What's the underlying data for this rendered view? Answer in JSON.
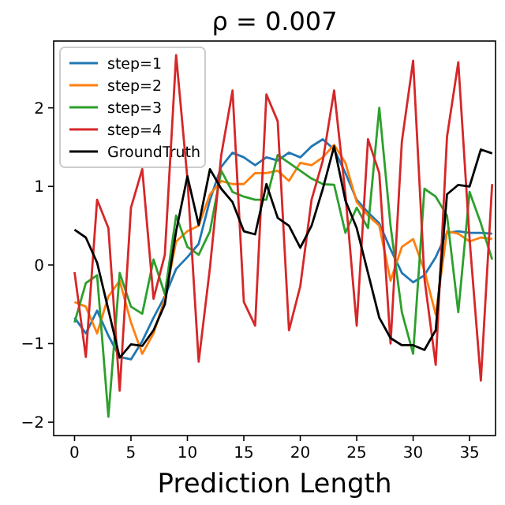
{
  "chart_data": {
    "type": "line",
    "title": "ρ = 0.007",
    "xlabel": "Prediction Length",
    "x": [
      0,
      1,
      2,
      3,
      4,
      5,
      6,
      7,
      8,
      9,
      10,
      11,
      12,
      13,
      14,
      15,
      16,
      17,
      18,
      19,
      20,
      21,
      22,
      23,
      24,
      25,
      26,
      27,
      28,
      29,
      30,
      31,
      32,
      33,
      34,
      35,
      36,
      37
    ],
    "xlim": [
      -1.85,
      37.3
    ],
    "xticks": [
      0,
      5,
      10,
      15,
      20,
      25,
      30,
      35
    ],
    "ylim": [
      -2.17,
      2.85
    ],
    "yticks": [
      -2,
      -1,
      0,
      1,
      2
    ],
    "grid": false,
    "legend": "top left",
    "marker": "none",
    "line_style": "solid",
    "series": [
      {
        "name": "step=1",
        "color": "#1f77b4",
        "values": [
          -0.67,
          -0.87,
          -0.58,
          -0.9,
          -1.17,
          -1.2,
          -0.97,
          -0.67,
          -0.4,
          -0.05,
          0.1,
          0.27,
          0.83,
          1.25,
          1.43,
          1.37,
          1.27,
          1.37,
          1.33,
          1.43,
          1.37,
          1.51,
          1.6,
          1.47,
          1.17,
          0.83,
          0.67,
          0.53,
          0.2,
          -0.1,
          -0.22,
          -0.13,
          0.1,
          0.41,
          0.43,
          0.41,
          0.41,
          0.4
        ]
      },
      {
        "name": "step=2",
        "color": "#ff7f0e",
        "values": [
          -0.47,
          -0.53,
          -0.87,
          -0.4,
          -0.2,
          -0.73,
          -1.13,
          -0.87,
          -0.43,
          0.3,
          0.43,
          0.5,
          0.9,
          1.07,
          1.03,
          1.03,
          1.17,
          1.17,
          1.2,
          1.07,
          1.3,
          1.27,
          1.37,
          1.53,
          1.3,
          0.8,
          0.63,
          0.5,
          -0.2,
          0.23,
          0.33,
          -0.07,
          -0.63,
          0.43,
          0.4,
          0.3,
          0.35,
          0.33
        ]
      },
      {
        "name": "step=3",
        "color": "#2ca02c",
        "values": [
          -0.73,
          -0.23,
          -0.13,
          -1.93,
          -0.1,
          -0.53,
          -0.62,
          0.07,
          -0.37,
          0.63,
          0.23,
          0.13,
          0.43,
          1.2,
          0.93,
          0.87,
          0.83,
          0.83,
          1.4,
          1.3,
          1.2,
          1.1,
          1.03,
          1.02,
          0.41,
          0.73,
          0.47,
          2.0,
          0.5,
          -0.6,
          -1.13,
          0.97,
          0.87,
          0.63,
          -0.6,
          0.93,
          0.53,
          0.07
        ]
      },
      {
        "name": "step=4",
        "color": "#d62728",
        "values": [
          -0.09,
          -1.17,
          0.83,
          0.47,
          -1.6,
          0.73,
          1.22,
          -0.43,
          0.13,
          2.67,
          1.1,
          -1.23,
          -0.03,
          1.4,
          2.22,
          -0.47,
          -0.77,
          2.17,
          1.83,
          -0.83,
          -0.27,
          0.83,
          1.33,
          2.22,
          0.9,
          -0.77,
          1.6,
          1.17,
          -1.0,
          1.57,
          2.6,
          -0.17,
          -1.27,
          1.63,
          2.58,
          0.33,
          -1.47,
          1.03
        ]
      },
      {
        "name": "GroundTruth",
        "color": "#000000",
        "values": [
          0.45,
          0.35,
          0.03,
          -0.57,
          -1.18,
          -1.01,
          -1.03,
          -0.83,
          -0.5,
          0.43,
          1.13,
          0.51,
          1.22,
          0.97,
          0.8,
          0.43,
          0.39,
          1.03,
          0.6,
          0.5,
          0.22,
          0.5,
          0.97,
          1.51,
          0.82,
          0.47,
          -0.1,
          -0.67,
          -0.93,
          -1.02,
          -1.02,
          -1.08,
          -0.83,
          0.9,
          1.02,
          1.0,
          1.47,
          1.42
        ]
      }
    ]
  }
}
